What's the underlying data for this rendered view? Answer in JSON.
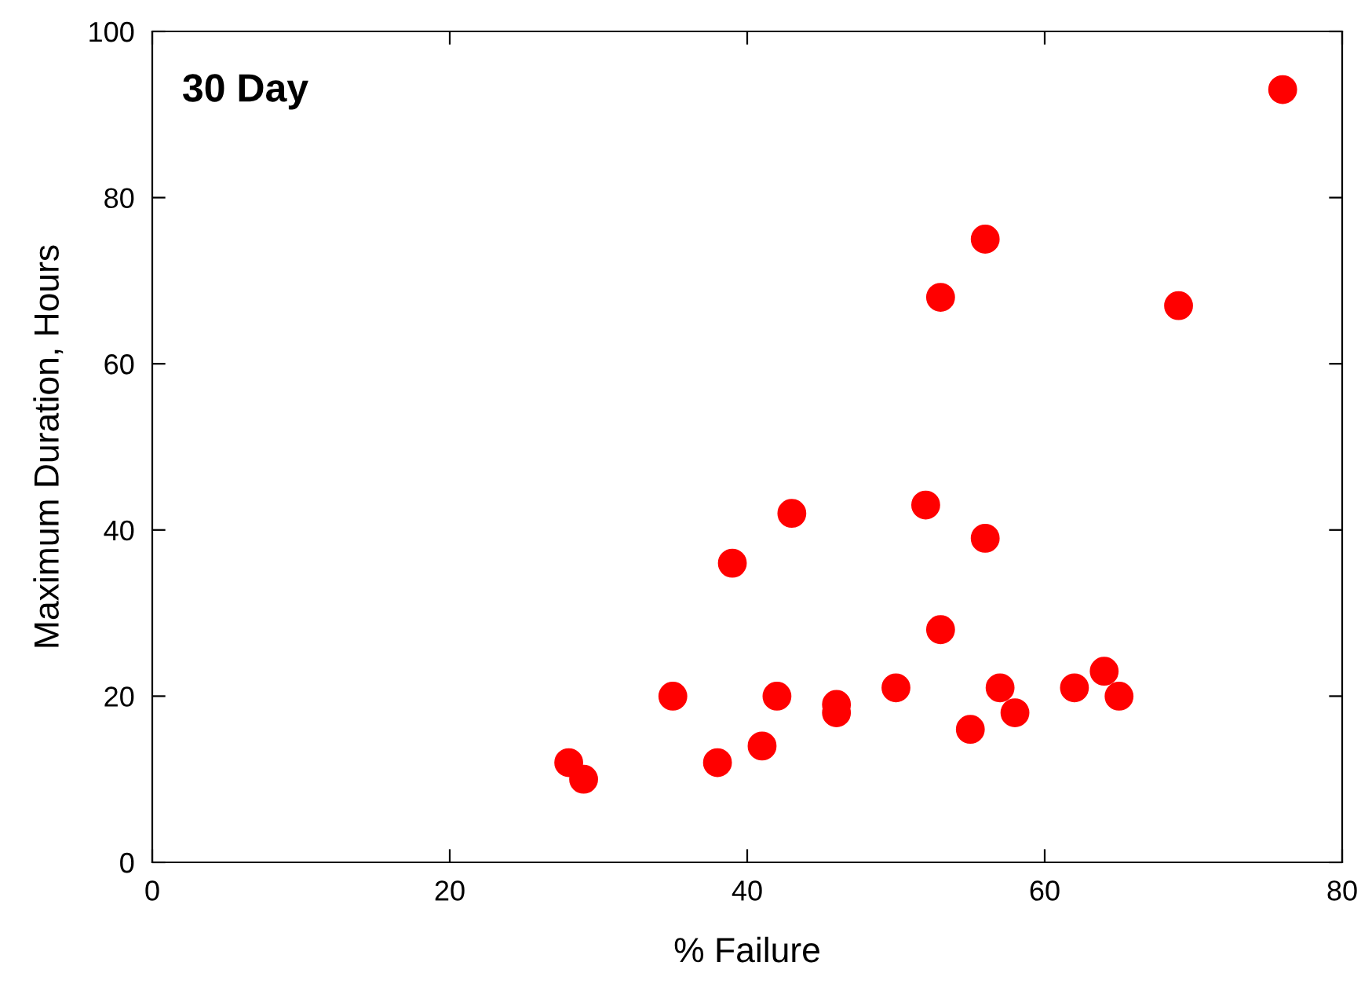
{
  "chart_data": {
    "type": "scatter",
    "title": "30 Day",
    "xlabel": "% Failure",
    "ylabel": "Maximum Duration, Hours",
    "x": [
      28,
      29,
      35,
      38,
      39,
      41,
      42,
      43,
      46,
      46,
      50,
      52,
      53,
      53,
      55,
      56,
      56,
      57,
      58,
      62,
      64,
      65,
      69,
      76
    ],
    "series": [
      {
        "color": "#ff0000",
        "values": [
          12,
          10,
          20,
          12,
          36,
          14,
          20,
          42,
          19,
          18,
          21,
          43,
          28,
          68,
          16,
          39,
          75,
          21,
          18,
          21,
          23,
          20,
          67,
          93
        ]
      }
    ],
    "xlim": [
      0,
      80
    ],
    "ylim": [
      0,
      100
    ],
    "xticks": [
      0,
      20,
      40,
      60,
      80
    ],
    "yticks": [
      0,
      20,
      40,
      60,
      80,
      100
    ],
    "marker": "circle",
    "grid": false,
    "legend": false
  }
}
